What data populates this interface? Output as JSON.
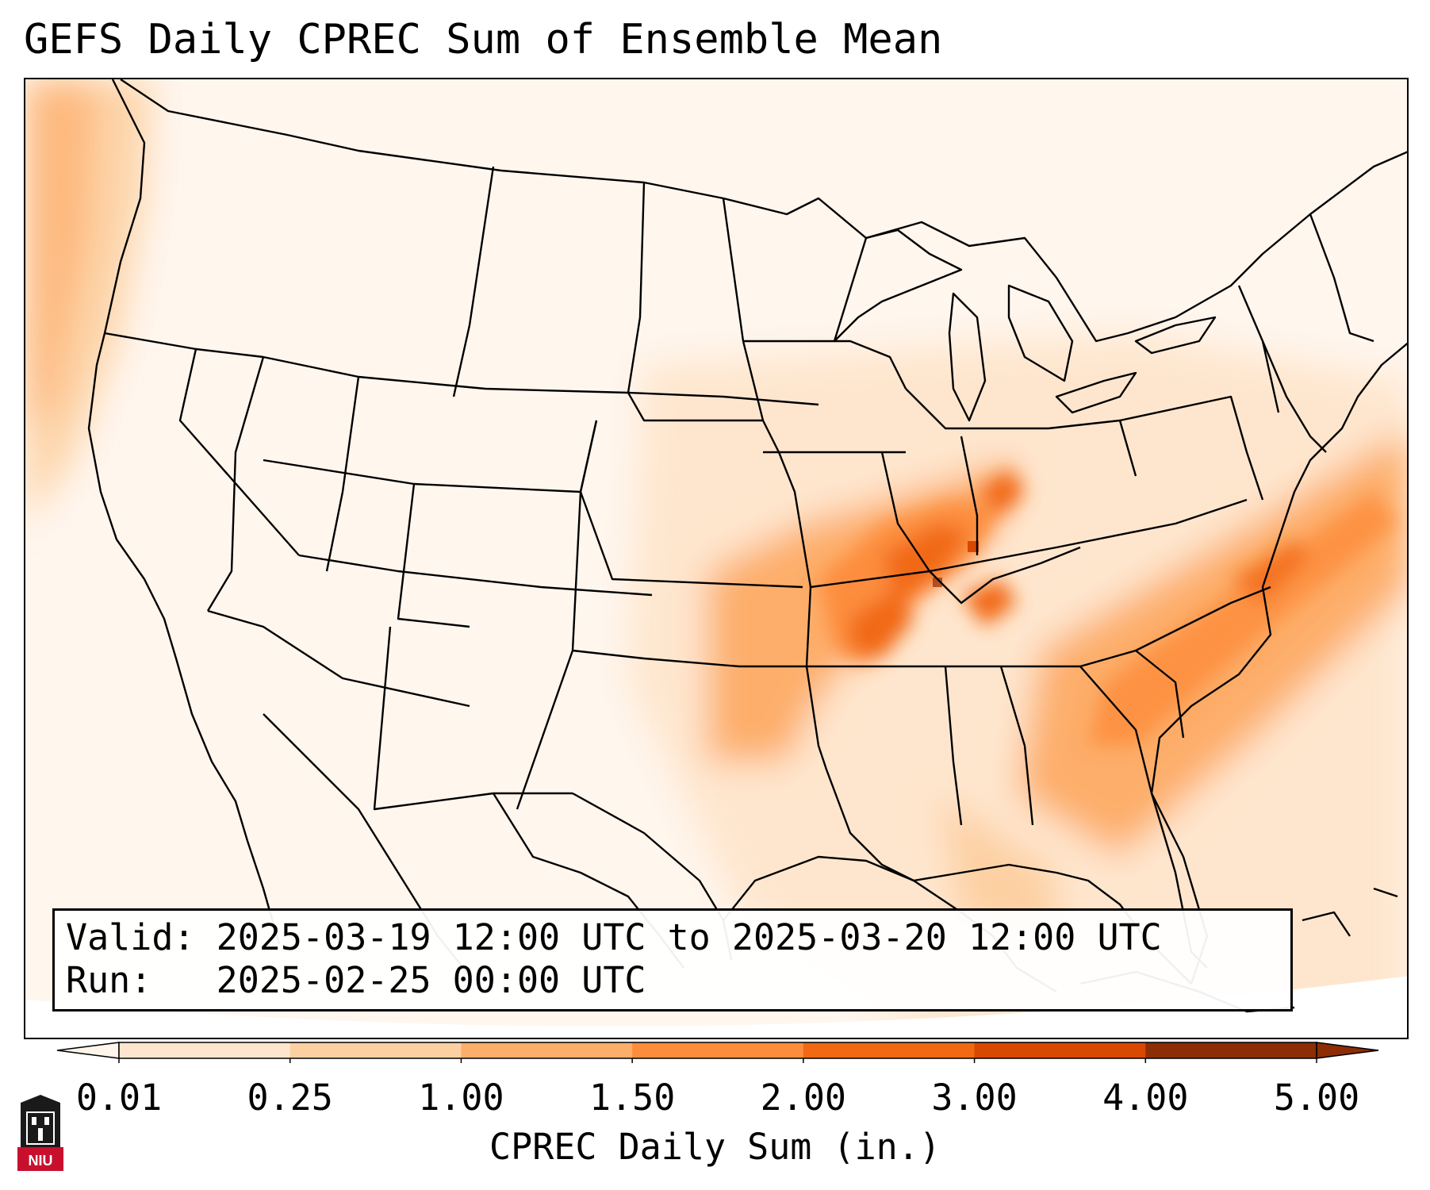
{
  "title": "GEFS Daily CPREC Sum of Ensemble Mean",
  "info": {
    "valid_label": "Valid:",
    "valid_value": "2025-03-19 12:00 UTC to 2025-03-20 12:00 UTC",
    "run_label": "Run:",
    "run_value": "2025-02-25 00:00 UTC"
  },
  "colorbar": {
    "label": "CPREC Daily Sum (in.)",
    "ticks": [
      "0.01",
      "0.25",
      "1.00",
      "1.50",
      "2.00",
      "3.00",
      "4.00",
      "5.00"
    ],
    "colors": [
      "#fff5eb",
      "#fee6ce",
      "#fdd0a2",
      "#fdae6b",
      "#fd8d3c",
      "#f16913",
      "#d94801",
      "#8c2d04"
    ],
    "extend": "both"
  },
  "logo": {
    "text": "NIU",
    "color": "#c8102e"
  },
  "map": {
    "projection": "Lambert conformal, CONUS",
    "field": "CPREC daily sum",
    "max_region": "Tennessee / Kentucky / Mississippi valley",
    "secondary_region": "off the Southeast US coast (Atlantic)"
  }
}
